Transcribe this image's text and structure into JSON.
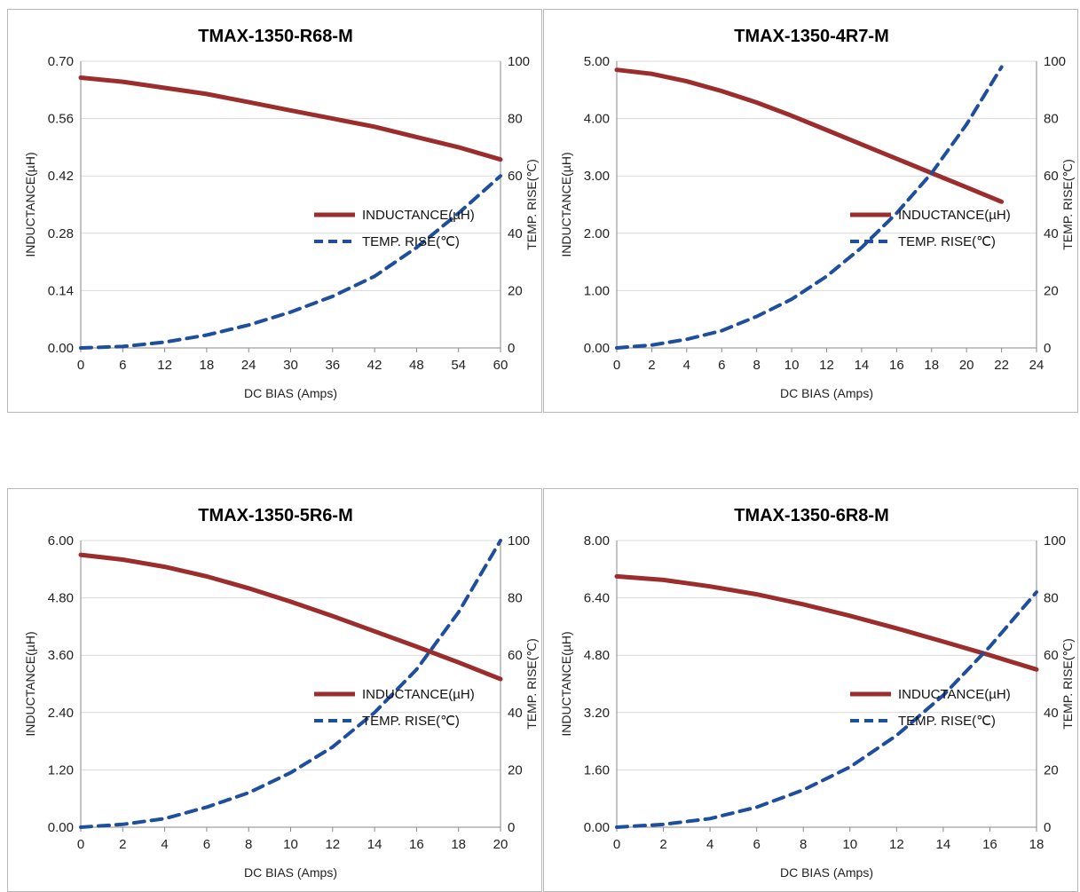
{
  "colors": {
    "inductance": "#9b2d2d",
    "temp_rise": "#1f4e9c",
    "axis": "#888888",
    "grid": "#d9d9d9"
  },
  "legend": {
    "placement": "right",
    "inductance_label": "INDUCTANCE(µH)",
    "temp_label": "TEMP. RISE(℃)"
  },
  "chart_data": [
    {
      "type": "line",
      "title": "TMAX-1350-R68-M",
      "xlabel": "DC BIAS  (Amps)",
      "ylabel": "INDUCTANCE(µH)",
      "y2label": "TEMP. RISE(℃)",
      "xlim": [
        0,
        60
      ],
      "x_ticks": [
        "0",
        "6",
        "12",
        "18",
        "24",
        "30",
        "36",
        "42",
        "48",
        "54",
        "60"
      ],
      "ylim": [
        0,
        0.7
      ],
      "y_ticks": [
        "0.00",
        "0.14",
        "0.28",
        "0.42",
        "0.56",
        "0.70"
      ],
      "y2lim": [
        0,
        100
      ],
      "y2_ticks": [
        "0",
        "20",
        "40",
        "60",
        "80",
        "100"
      ],
      "grid": true,
      "series": [
        {
          "name": "INDUCTANCE(µH)",
          "axis": "left",
          "style": "solid",
          "x": [
            0,
            6,
            12,
            18,
            24,
            30,
            36,
            42,
            48,
            54,
            60
          ],
          "y": [
            0.66,
            0.65,
            0.635,
            0.62,
            0.6,
            0.58,
            0.56,
            0.54,
            0.515,
            0.49,
            0.46
          ]
        },
        {
          "name": "TEMP. RISE(℃)",
          "axis": "right",
          "style": "dashed",
          "x": [
            0,
            6,
            12,
            18,
            24,
            30,
            36,
            42,
            48,
            54,
            60
          ],
          "y": [
            0,
            0.5,
            2,
            4.5,
            8,
            12.5,
            18,
            25,
            35,
            47,
            60
          ]
        }
      ]
    },
    {
      "type": "line",
      "title": "TMAX-1350-4R7-M",
      "xlabel": "DC BIAS  (Amps)",
      "ylabel": "INDUCTANCE(µH)",
      "y2label": "TEMP. RISE(℃)",
      "xlim": [
        0,
        24
      ],
      "x_ticks": [
        "0",
        "2",
        "4",
        "6",
        "8",
        "10",
        "12",
        "14",
        "16",
        "18",
        "20",
        "22",
        "24"
      ],
      "ylim": [
        0,
        5
      ],
      "y_ticks": [
        "0.00",
        "1.00",
        "2.00",
        "3.00",
        "4.00",
        "5.00"
      ],
      "y2lim": [
        0,
        100
      ],
      "y2_ticks": [
        "0",
        "20",
        "40",
        "60",
        "80",
        "100"
      ],
      "grid": true,
      "series": [
        {
          "name": "INDUCTANCE(µH)",
          "axis": "left",
          "style": "solid",
          "x": [
            0,
            2,
            4,
            6,
            8,
            10,
            12,
            14,
            16,
            18,
            20,
            22
          ],
          "y": [
            4.85,
            4.78,
            4.65,
            4.48,
            4.28,
            4.05,
            3.8,
            3.55,
            3.3,
            3.05,
            2.8,
            2.55
          ]
        },
        {
          "name": "TEMP. RISE(℃)",
          "axis": "right",
          "style": "dashed",
          "x": [
            0,
            2,
            4,
            6,
            8,
            10,
            12,
            14,
            16,
            18,
            20,
            22
          ],
          "y": [
            0,
            1,
            3,
            6,
            11,
            17,
            25,
            35,
            47,
            61,
            78,
            98
          ]
        }
      ]
    },
    {
      "type": "line",
      "title": "TMAX-1350-5R6-M",
      "xlabel": "DC BIAS  (Amps)",
      "ylabel": "INDUCTANCE(µH)",
      "y2label": "TEMP. RISE(℃)",
      "xlim": [
        0,
        20
      ],
      "x_ticks": [
        "0",
        "2",
        "4",
        "6",
        "8",
        "10",
        "12",
        "14",
        "16",
        "18",
        "20"
      ],
      "ylim": [
        0,
        6
      ],
      "y_ticks": [
        "0.00",
        "1.20",
        "2.40",
        "3.60",
        "4.80",
        "6.00"
      ],
      "y2lim": [
        0,
        100
      ],
      "y2_ticks": [
        "0",
        "20",
        "40",
        "60",
        "80",
        "100"
      ],
      "grid": true,
      "series": [
        {
          "name": "INDUCTANCE(µH)",
          "axis": "left",
          "style": "solid",
          "x": [
            0,
            2,
            4,
            6,
            8,
            10,
            12,
            14,
            16,
            18,
            20
          ],
          "y": [
            5.7,
            5.6,
            5.45,
            5.25,
            5.0,
            4.72,
            4.42,
            4.1,
            3.78,
            3.45,
            3.1
          ]
        },
        {
          "name": "TEMP. RISE(℃)",
          "axis": "right",
          "style": "dashed",
          "x": [
            0,
            2,
            4,
            6,
            8,
            10,
            12,
            14,
            16,
            18,
            20
          ],
          "y": [
            0,
            1,
            3,
            7,
            12,
            19,
            28,
            40,
            55,
            75,
            100
          ]
        }
      ]
    },
    {
      "type": "line",
      "title": "TMAX-1350-6R8-M",
      "xlabel": "DC BIAS  (Amps)",
      "ylabel": "INDUCTANCE(µH)",
      "y2label": "TEMP. RISE(℃)",
      "xlim": [
        0,
        18
      ],
      "x_ticks": [
        "0",
        "2",
        "4",
        "6",
        "8",
        "10",
        "12",
        "14",
        "16",
        "18"
      ],
      "ylim": [
        0,
        8
      ],
      "y_ticks": [
        "0.00",
        "1.60",
        "3.20",
        "4.80",
        "6.40",
        "8.00"
      ],
      "y2lim": [
        0,
        100
      ],
      "y2_ticks": [
        "0",
        "20",
        "40",
        "60",
        "80",
        "100"
      ],
      "grid": true,
      "series": [
        {
          "name": "INDUCTANCE(µH)",
          "axis": "left",
          "style": "solid",
          "x": [
            0,
            2,
            4,
            6,
            8,
            10,
            12,
            14,
            16,
            18
          ],
          "y": [
            7.0,
            6.9,
            6.72,
            6.5,
            6.22,
            5.9,
            5.55,
            5.18,
            4.8,
            4.4
          ]
        },
        {
          "name": "TEMP. RISE(℃)",
          "axis": "right",
          "style": "dashed",
          "x": [
            0,
            2,
            4,
            6,
            8,
            10,
            12,
            14,
            16,
            18
          ],
          "y": [
            0,
            1,
            3,
            7,
            13,
            21,
            32,
            46,
            63,
            82
          ]
        }
      ]
    }
  ]
}
